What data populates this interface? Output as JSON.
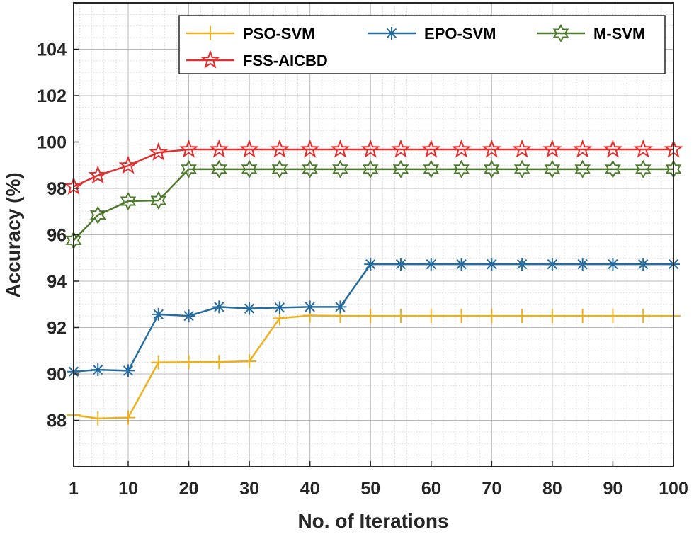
{
  "chart_data": {
    "type": "line",
    "xlabel": "No. of Iterations",
    "ylabel": "Accuracy (%)",
    "xlim": [
      1,
      100
    ],
    "ylim": [
      86,
      106
    ],
    "xticks": [
      1,
      10,
      20,
      30,
      40,
      50,
      60,
      70,
      80,
      90,
      100
    ],
    "xtick_labels": [
      "1",
      "10",
      "20",
      "30",
      "40",
      "50",
      "60",
      "70",
      "80",
      "90",
      "100"
    ],
    "yticks": [
      88,
      90,
      92,
      94,
      96,
      98,
      100,
      102,
      104
    ],
    "ytick_labels": [
      "88",
      "90",
      "92",
      "94",
      "96",
      "98",
      "100",
      "102",
      "104"
    ],
    "grid": true,
    "minor_grid": true,
    "legend_position": "top-right",
    "x": [
      1,
      5,
      10,
      15,
      20,
      25,
      30,
      35,
      40,
      45,
      50,
      55,
      60,
      65,
      70,
      75,
      80,
      85,
      90,
      95,
      100
    ],
    "series": [
      {
        "name": "PSO-SVM",
        "color": "#EDB120",
        "marker": "plus",
        "values": [
          88.23,
          88.08,
          88.12,
          90.5,
          90.51,
          90.51,
          90.55,
          92.4,
          92.52,
          92.5,
          92.5,
          92.5,
          92.5,
          92.5,
          92.5,
          92.5,
          92.5,
          92.5,
          92.5,
          92.5,
          92.5
        ]
      },
      {
        "name": "EPO-SVM",
        "color": "#276C9E",
        "marker": "asterisk",
        "values": [
          90.1,
          90.18,
          90.14,
          92.57,
          92.5,
          92.89,
          92.82,
          92.86,
          92.89,
          92.89,
          94.73,
          94.73,
          94.73,
          94.73,
          94.73,
          94.73,
          94.73,
          94.73,
          94.73,
          94.73,
          94.73
        ]
      },
      {
        "name": "M-SVM",
        "color": "#4E7A2E",
        "marker": "hexagram",
        "values": [
          95.76,
          96.85,
          97.45,
          97.48,
          98.83,
          98.83,
          98.83,
          98.83,
          98.83,
          98.83,
          98.83,
          98.83,
          98.83,
          98.83,
          98.83,
          98.83,
          98.83,
          98.83,
          98.83,
          98.83,
          98.83
        ]
      },
      {
        "name": "FSS-AICBD",
        "color": "#E03030",
        "marker": "pentagram",
        "values": [
          98.08,
          98.56,
          98.98,
          99.55,
          99.68,
          99.68,
          99.68,
          99.68,
          99.68,
          99.68,
          99.68,
          99.68,
          99.68,
          99.68,
          99.68,
          99.68,
          99.68,
          99.68,
          99.68,
          99.68,
          99.68
        ]
      }
    ]
  }
}
